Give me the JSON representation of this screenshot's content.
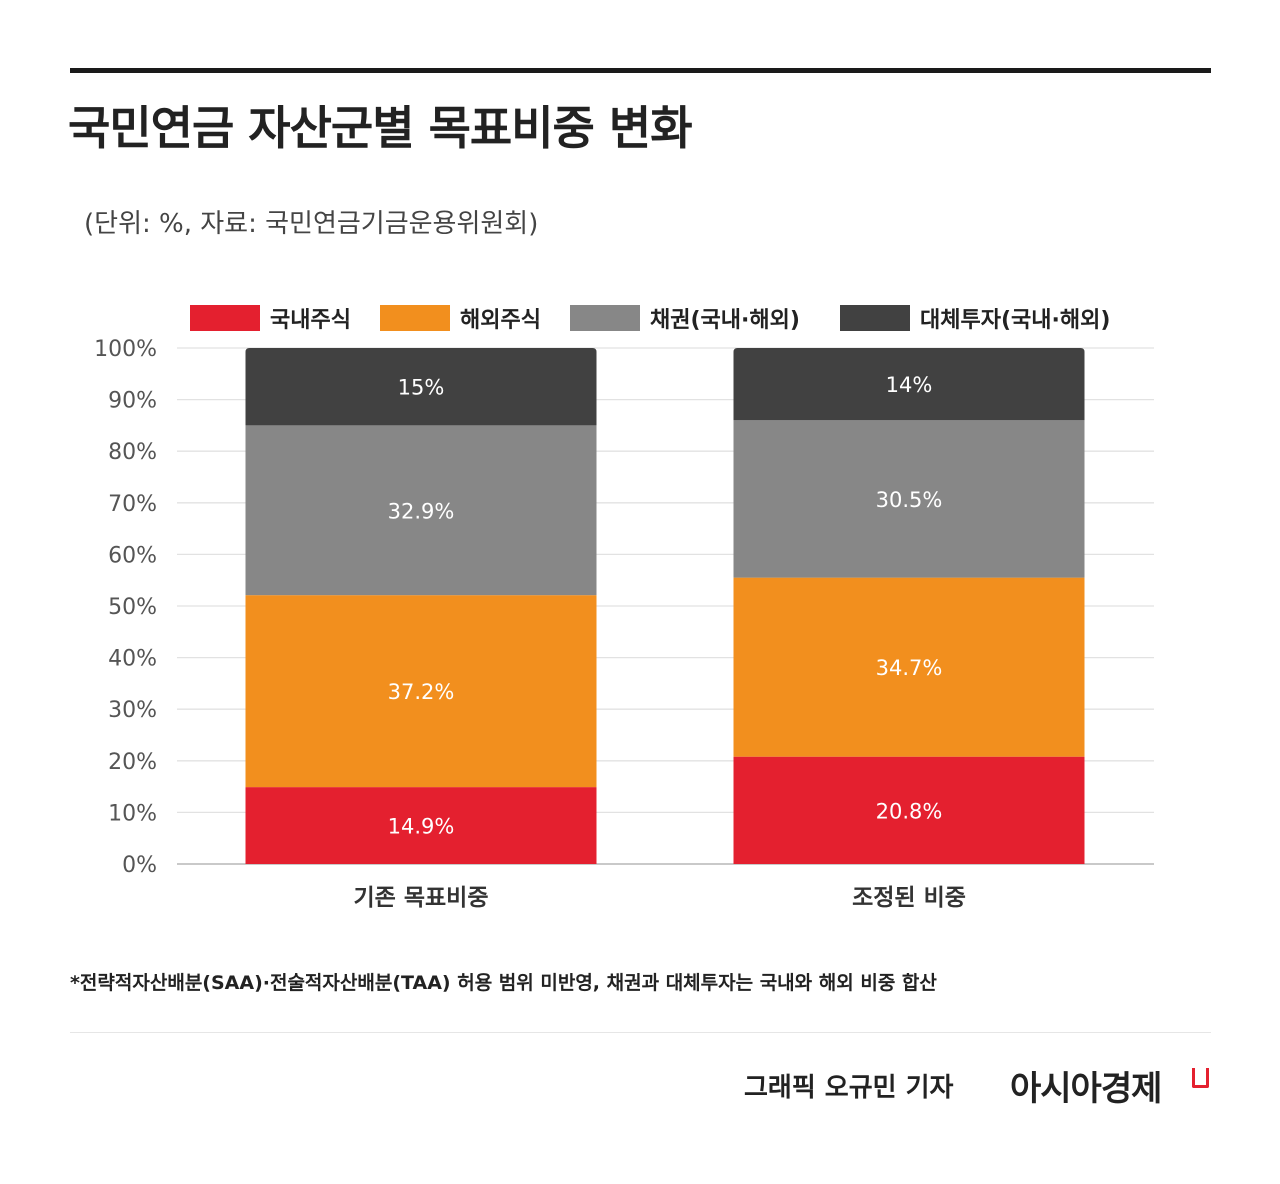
{
  "title": "국민연금 자산군별 목표비중 변화",
  "subtitle": "(단위: %, 자료: 국민연금기금운용위원회)",
  "colors": {
    "domestic_stock": "#e4202f",
    "foreign_stock": "#f28f1e",
    "bond": "#878787",
    "alternative": "#414141",
    "grid": "#e2e2e2",
    "axis": "#c9c9c9"
  },
  "legend": [
    {
      "label": "국내주식",
      "color": "#e4202f"
    },
    {
      "label": "해외주식",
      "color": "#f28f1e"
    },
    {
      "label": "채권(국내·해외)",
      "color": "#878787"
    },
    {
      "label": "대체투자(국내·해외)",
      "color": "#414141"
    }
  ],
  "chart_data": {
    "type": "bar",
    "stacked": true,
    "categories": [
      "기존 목표비중",
      "조정된 비중"
    ],
    "series": [
      {
        "name": "국내주식",
        "values": [
          14.9,
          20.8
        ],
        "labels": [
          "14.9%",
          "20.8%"
        ],
        "color": "#e4202f"
      },
      {
        "name": "해외주식",
        "values": [
          37.2,
          34.7
        ],
        "labels": [
          "37.2%",
          "34.7%"
        ],
        "color": "#f28f1e"
      },
      {
        "name": "채권(국내·해외)",
        "values": [
          32.9,
          30.5
        ],
        "labels": [
          "32.9%",
          "30.5%"
        ],
        "color": "#878787"
      },
      {
        "name": "대체투자(국내·해외)",
        "values": [
          15,
          14
        ],
        "labels": [
          "15%",
          "14%"
        ],
        "color": "#414141"
      }
    ],
    "yticks": [
      "0%",
      "10%",
      "20%",
      "30%",
      "40%",
      "50%",
      "60%",
      "70%",
      "80%",
      "90%",
      "100%"
    ],
    "ylim": [
      0,
      100
    ],
    "grid": true,
    "legend_position": "top"
  },
  "footnote": "*전략적자산배분(SAA)·전술적자산배분(TAA) 허용 범위 미반영, 채권과 대체투자는 국내와 해외 비중 합산",
  "credit": "그래픽  오규민 기자",
  "brand": "아시아경제"
}
